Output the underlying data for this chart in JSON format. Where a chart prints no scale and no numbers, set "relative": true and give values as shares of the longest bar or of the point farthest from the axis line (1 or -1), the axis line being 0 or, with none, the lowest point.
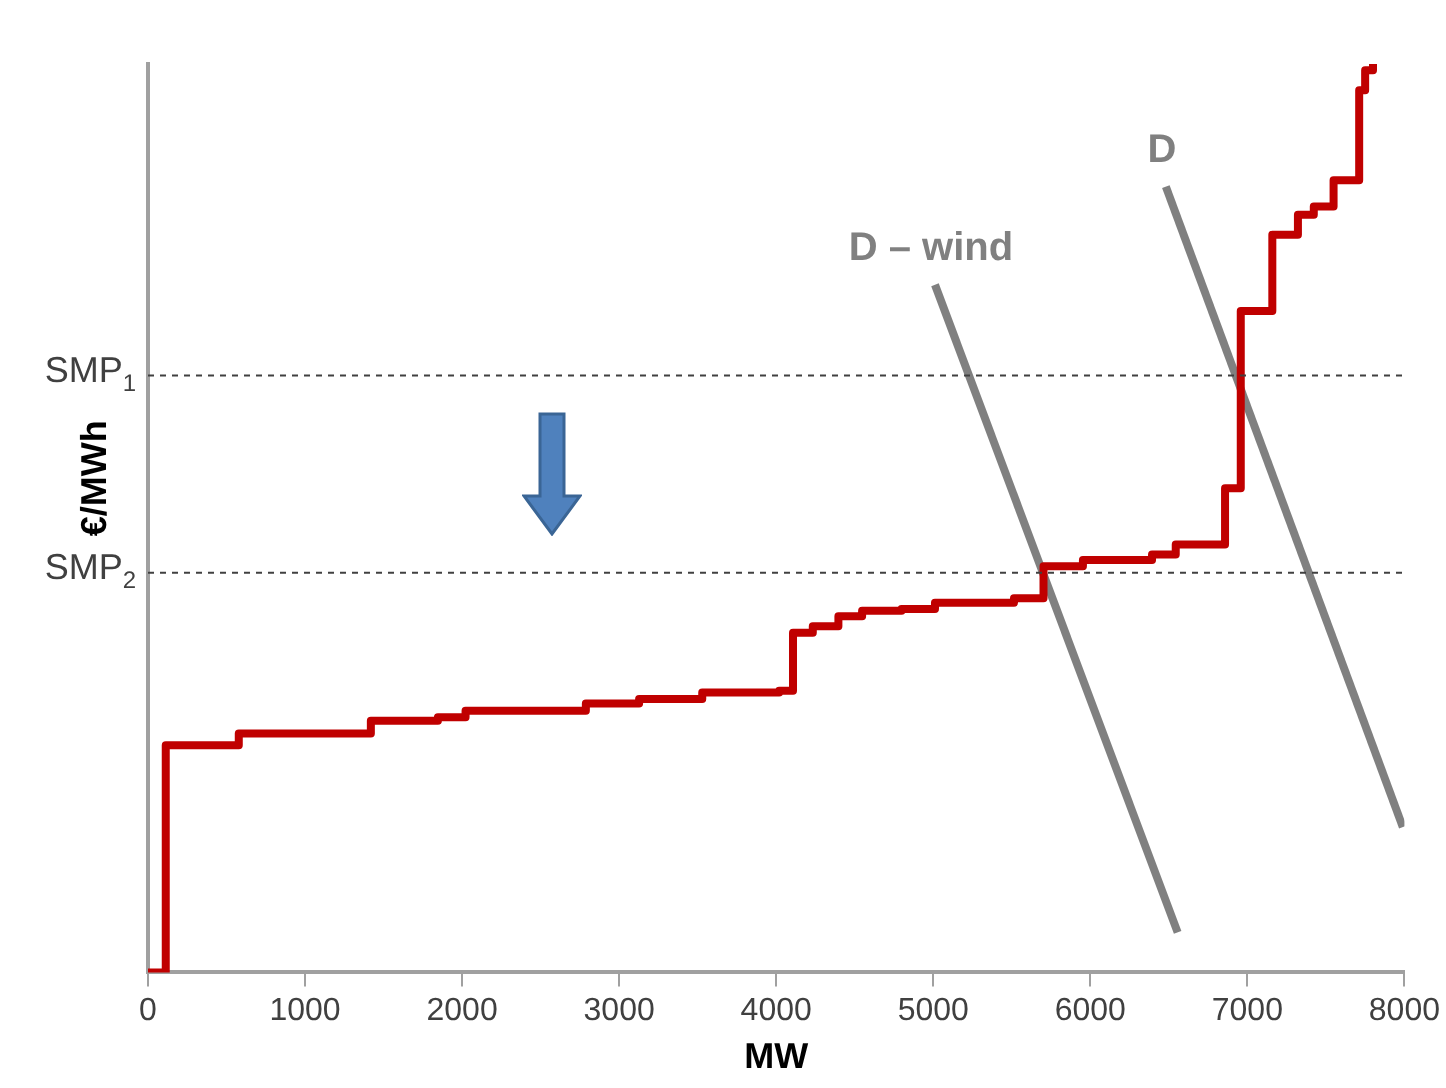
{
  "chart_data": {
    "type": "step",
    "xlabel": "MW",
    "ylabel": "€/MWh",
    "relative": true,
    "marker": "none",
    "xlim": [
      0,
      8000
    ],
    "xticks": [
      0,
      1000,
      2000,
      3000,
      4000,
      5000,
      6000,
      7000,
      8000
    ],
    "series": [
      {
        "type": "step",
        "color": "#c00000",
        "x": [
          0,
          113,
          578,
          1419,
          1846,
          2022,
          2788,
          3127,
          3529,
          4019,
          4107,
          4233,
          4396,
          4547,
          4798,
          5011,
          5514,
          5702,
          5953,
          6393,
          6544,
          6858,
          6958,
          7159,
          7322,
          7423,
          7549,
          7712,
          7750,
          7800
        ],
        "values": [
          0,
          0.25,
          0.263,
          0.277,
          0.281,
          0.288,
          0.296,
          0.301,
          0.308,
          0.31,
          0.374,
          0.381,
          0.392,
          0.398,
          0.4,
          0.407,
          0.412,
          0.447,
          0.454,
          0.46,
          0.471,
          0.533,
          0.728,
          0.812,
          0.834,
          0.843,
          0.872,
          0.971,
          0.993,
          1
        ]
      },
      {
        "type": "line",
        "name": "D – wind",
        "color": "#808080",
        "x": [
          5011,
          6556
        ],
        "values": [
          0.757,
          0.044
        ]
      },
      {
        "type": "line",
        "name": "D",
        "color": "#808080",
        "x": [
          6481,
          7990
        ],
        "values": [
          0.865,
          0.16
        ]
      }
    ],
    "ref_lines": [
      {
        "axis": "y",
        "value": 0.657,
        "label": "SMP$_{1}$",
        "color": "#404040",
        "line_style": "dashed"
      },
      {
        "axis": "y",
        "value": 0.44,
        "label": "SMP$_{2}$",
        "color": "#404040",
        "line_style": "dashed"
      }
    ]
  }
}
